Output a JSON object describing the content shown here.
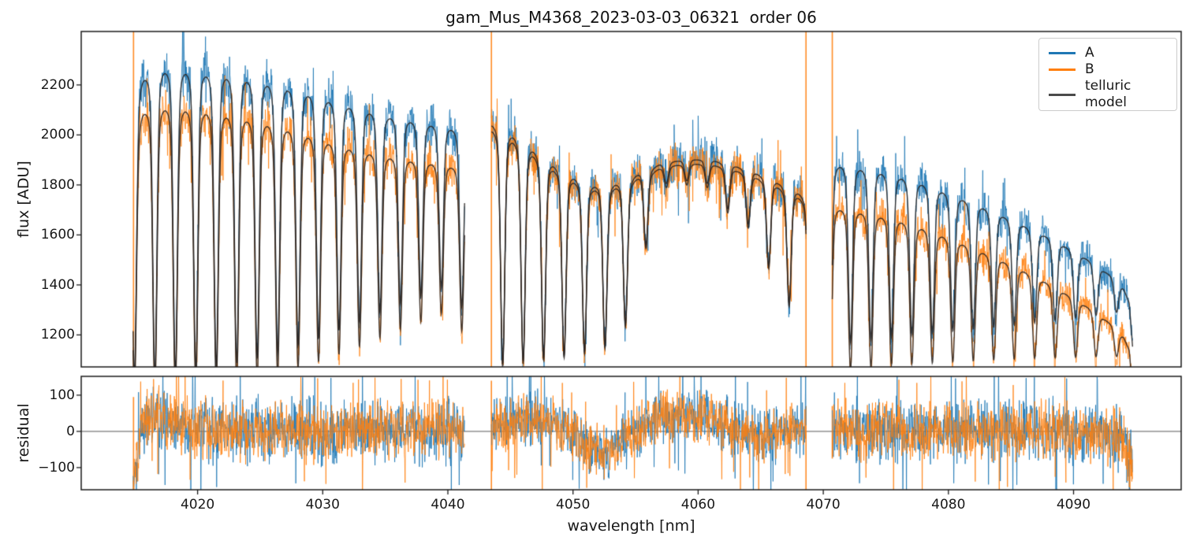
{
  "page": {
    "background": "#ffffff"
  },
  "chart_data": {
    "type": "line",
    "title": "gam_Mus_M4368_2023-03-03_06321  order 06",
    "xlabel": "wavelength [nm]",
    "xlim": [
      4010.7,
      4098.6
    ],
    "xticks": [
      {
        "v": 4020,
        "label": "4020"
      },
      {
        "v": 4030,
        "label": "4030"
      },
      {
        "v": 4040,
        "label": "4040"
      },
      {
        "v": 4050,
        "label": "4050"
      },
      {
        "v": 4060,
        "label": "4060"
      },
      {
        "v": 4070,
        "label": "4070"
      },
      {
        "v": 4080,
        "label": "4080"
      },
      {
        "v": 4090,
        "label": "4090"
      }
    ],
    "panels": [
      {
        "name": "flux",
        "ylabel": "flux [ADU]",
        "ylim": [
          1072,
          2414
        ],
        "yticks": [
          {
            "v": 1200,
            "label": "1200"
          },
          {
            "v": 1400,
            "label": "1400"
          },
          {
            "v": 1600,
            "label": "1600"
          },
          {
            "v": 1800,
            "label": "1800"
          },
          {
            "v": 2000,
            "label": "2000"
          },
          {
            "v": 2200,
            "label": "2200"
          }
        ]
      },
      {
        "name": "residual",
        "ylabel": "residual",
        "ylim": [
          -161,
          152
        ],
        "yticks": [
          {
            "v": -100,
            "label": "−100"
          },
          {
            "v": 0,
            "label": "0"
          },
          {
            "v": 100,
            "label": "100"
          }
        ],
        "zero_line": true
      }
    ],
    "legend": [
      {
        "label": "A",
        "color": "#1f77b4"
      },
      {
        "label": "B",
        "color": "#ff7f0e"
      },
      {
        "label": "telluric model",
        "color": "#4a4a4a"
      }
    ],
    "colors": {
      "A": "#1f77b4",
      "B": "#ff7f0e",
      "model": "#2a2522",
      "spine": "#1a1a1a",
      "zero_line": "#444444",
      "boundary": "#ff7f0e"
    },
    "segments": [
      [
        4014.85,
        4041.35
      ],
      [
        4043.48,
        4068.62
      ],
      [
        4070.72,
        4094.72
      ]
    ],
    "continuum": [
      [
        4014.85,
        2250,
        2110
      ],
      [
        4015.6,
        2315,
        2175
      ],
      [
        4017,
        2350,
        2195
      ],
      [
        4019,
        2345,
        2188
      ],
      [
        4021,
        2330,
        2172
      ],
      [
        4023,
        2315,
        2152
      ],
      [
        4025,
        2295,
        2128
      ],
      [
        4027,
        2268,
        2098
      ],
      [
        4029,
        2235,
        2062
      ],
      [
        4031,
        2200,
        2025
      ],
      [
        4033,
        2165,
        1995
      ],
      [
        4035,
        2135,
        1968
      ],
      [
        4037,
        2110,
        1948
      ],
      [
        4039,
        2088,
        1930
      ],
      [
        4041.35,
        2065,
        1912
      ],
      [
        4043.48,
        2112,
        2088
      ],
      [
        4044.5,
        2088,
        2065
      ],
      [
        4045.5,
        2055,
        2033
      ],
      [
        4046.5,
        2015,
        1995
      ],
      [
        4047.5,
        1975,
        1955
      ],
      [
        4048.5,
        1935,
        1917
      ],
      [
        4049.5,
        1900,
        1883
      ],
      [
        4050.5,
        1870,
        1854
      ],
      [
        4051.6,
        1847,
        1832
      ],
      [
        4052.6,
        1842,
        1828
      ],
      [
        4053.6,
        1852,
        1837
      ],
      [
        4055,
        1870,
        1854
      ],
      [
        4056.5,
        1888,
        1871
      ],
      [
        4058,
        1900,
        1883
      ],
      [
        4059.5,
        1908,
        1890
      ],
      [
        4061,
        1907,
        1889
      ],
      [
        4062.5,
        1896,
        1878
      ],
      [
        4064,
        1876,
        1858
      ],
      [
        4065.5,
        1853,
        1835
      ],
      [
        4067,
        1828,
        1810
      ],
      [
        4068,
        1805,
        1787
      ],
      [
        4068.62,
        1782,
        1764
      ],
      [
        4070.72,
        1935,
        1757
      ],
      [
        4072,
        1926,
        1747
      ],
      [
        4074,
        1906,
        1726
      ],
      [
        4076,
        1881,
        1700
      ],
      [
        4078,
        1847,
        1665
      ],
      [
        4080,
        1806,
        1624
      ],
      [
        4082,
        1763,
        1580
      ],
      [
        4084,
        1717,
        1533
      ],
      [
        4086,
        1668,
        1482
      ],
      [
        4088,
        1615,
        1427
      ],
      [
        4090,
        1556,
        1364
      ],
      [
        4091.5,
        1506,
        1313
      ],
      [
        4093,
        1446,
        1252
      ],
      [
        4094,
        1392,
        1197
      ],
      [
        4094.45,
        1330,
        1140
      ],
      [
        4094.72,
        1150,
        980
      ]
    ],
    "telluric_lines": {
      "start": 4014.95,
      "spacing": 1.635,
      "sigma_narrow": 0.16,
      "sigma_broad": 0.52,
      "bottoms": [
        1020,
        1030,
        1040,
        1050,
        1060,
        1075,
        1090,
        1110,
        1135,
        1160,
        1190,
        1220,
        1255,
        1290,
        1320,
        1350,
        1280,
        1200,
        1100,
        1110,
        1120,
        1130,
        1145,
        1165,
        1250,
        1560,
        1800,
        1810,
        1800,
        1700,
        1640,
        1480,
        1330,
        1250,
        1120,
        1130,
        1140,
        1150,
        1155,
        1160,
        1165,
        1170,
        1175,
        1180,
        1185,
        1190,
        1195,
        1200,
        1205
      ]
    },
    "residual_mean": [
      [
        4014.85,
        -150
      ],
      [
        4015.2,
        -60
      ],
      [
        4015.7,
        30
      ],
      [
        4016.3,
        55
      ],
      [
        4017.2,
        35
      ],
      [
        4018.5,
        18
      ],
      [
        4020.5,
        8
      ],
      [
        4024,
        2
      ],
      [
        4041.35,
        0
      ],
      [
        4043.48,
        5
      ],
      [
        4044.5,
        18
      ],
      [
        4046,
        32
      ],
      [
        4047.5,
        38
      ],
      [
        4048.8,
        20
      ],
      [
        4050,
        -10
      ],
      [
        4051.2,
        -40
      ],
      [
        4052.4,
        -62
      ],
      [
        4053.4,
        -45
      ],
      [
        4054.6,
        -8
      ],
      [
        4056,
        25
      ],
      [
        4057.5,
        40
      ],
      [
        4059,
        42
      ],
      [
        4060.5,
        35
      ],
      [
        4062,
        18
      ],
      [
        4063.5,
        -2
      ],
      [
        4065,
        -12
      ],
      [
        4066.3,
        -8
      ],
      [
        4067.5,
        8
      ],
      [
        4068.62,
        15
      ],
      [
        4070.72,
        15
      ],
      [
        4071.5,
        5
      ],
      [
        4073,
        2
      ],
      [
        4080,
        0
      ],
      [
        4088,
        2
      ],
      [
        4091,
        -3
      ],
      [
        4093,
        -8
      ],
      [
        4094,
        -25
      ],
      [
        4094.72,
        -95
      ]
    ],
    "boundary_lines": [
      {
        "x": 4014.88,
        "flux_full": true,
        "res_range": [
          -161,
          95
        ]
      },
      {
        "x": 4043.48,
        "flux_full": true,
        "res_range": [
          -161,
          140
        ]
      },
      {
        "x": 4068.62,
        "flux_full": true,
        "res_range": [
          -161,
          70
        ]
      },
      {
        "x": 4070.72,
        "flux_full": true,
        "res_range": [
          -75,
          70
        ]
      },
      {
        "x": 4094.5,
        "flux_full": false,
        "res_range": [
          -161,
          -5
        ]
      }
    ],
    "noise": {
      "seed": 20230303,
      "flux_sigma_base": 14,
      "flux_sigma_frac": 0.017,
      "residual_sigma_A": 47,
      "residual_sigma_B": 43,
      "residual_seg_factor": [
        1.0,
        0.85,
        0.95
      ]
    }
  }
}
